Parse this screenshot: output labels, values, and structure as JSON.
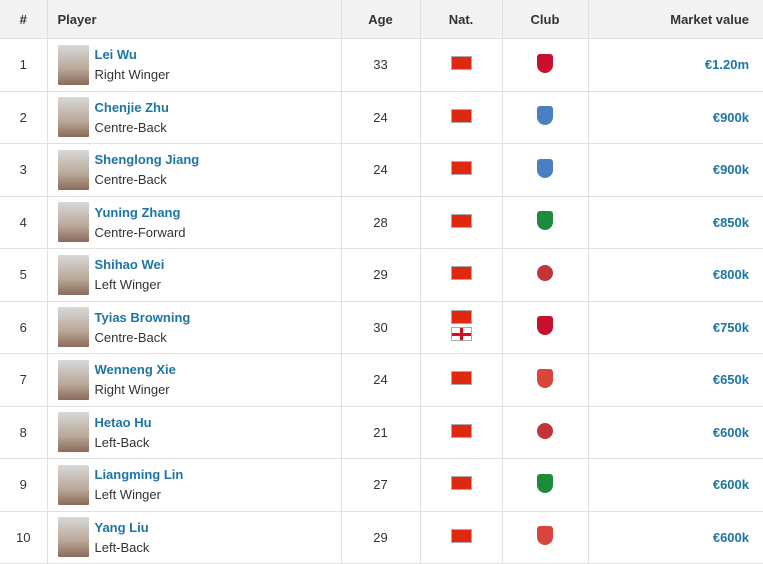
{
  "headers": {
    "rank": "#",
    "player": "Player",
    "age": "Age",
    "nat": "Nat.",
    "club": "Club",
    "value": "Market value"
  },
  "rows": [
    {
      "rank": "1",
      "name": "Lei Wu",
      "position": "Right Winger",
      "age": "33",
      "flags": [
        "china"
      ],
      "club": "shanghai-port-crest",
      "club_color": "#c8102e",
      "value": "€1.20m"
    },
    {
      "rank": "2",
      "name": "Chenjie Zhu",
      "position": "Centre-Back",
      "age": "24",
      "flags": [
        "china"
      ],
      "club": "shanghai-shenhua-crest",
      "club_color": "#4a7fc1",
      "value": "€900k"
    },
    {
      "rank": "3",
      "name": "Shenglong Jiang",
      "position": "Centre-Back",
      "age": "24",
      "flags": [
        "china"
      ],
      "club": "shanghai-shenhua-crest",
      "club_color": "#4a7fc1",
      "value": "€900k"
    },
    {
      "rank": "4",
      "name": "Yuning Zhang",
      "position": "Centre-Forward",
      "age": "28",
      "flags": [
        "china"
      ],
      "club": "beijing-guoan-crest",
      "club_color": "#1e8b3a",
      "value": "€850k"
    },
    {
      "rank": "5",
      "name": "Shihao Wei",
      "position": "Left Winger",
      "age": "29",
      "flags": [
        "china"
      ],
      "club": "red-round-crest",
      "club_color": "#c0343a",
      "value": "€800k"
    },
    {
      "rank": "6",
      "name": "Tyias Browning",
      "position": "Centre-Back",
      "age": "30",
      "flags": [
        "china",
        "england"
      ],
      "club": "shanghai-port-crest",
      "club_color": "#c8102e",
      "value": "€750k"
    },
    {
      "rank": "7",
      "name": "Wenneng Xie",
      "position": "Right Winger",
      "age": "24",
      "flags": [
        "china"
      ],
      "club": "chengdu-crest",
      "club_color": "#d9453a",
      "value": "€650k"
    },
    {
      "rank": "8",
      "name": "Hetao Hu",
      "position": "Left-Back",
      "age": "21",
      "flags": [
        "china"
      ],
      "club": "red-round-crest",
      "club_color": "#c0343a",
      "value": "€600k"
    },
    {
      "rank": "9",
      "name": "Liangming Lin",
      "position": "Left Winger",
      "age": "27",
      "flags": [
        "china"
      ],
      "club": "beijing-guoan-crest",
      "club_color": "#1e8b3a",
      "value": "€600k"
    },
    {
      "rank": "10",
      "name": "Yang Liu",
      "position": "Left-Back",
      "age": "29",
      "flags": [
        "china"
      ],
      "club": "chengdu-crest",
      "club_color": "#d9453a",
      "value": "€600k"
    }
  ]
}
